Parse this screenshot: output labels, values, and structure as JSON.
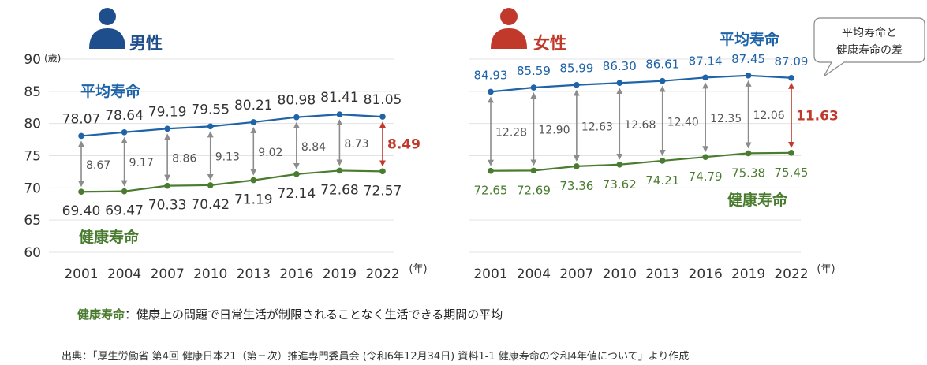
{
  "colors": {
    "life": "#1f63a8",
    "healthy": "#4a7c2f",
    "diff": "#8c8c8c",
    "diff_last": "#c0392b",
    "icon_male": "#1f4e8c",
    "icon_female": "#c0392b"
  },
  "icons": {
    "male": "male-person-icon",
    "female": "female-person-icon"
  },
  "chart_data": [
    {
      "type": "line",
      "panel_title": "男性",
      "ylabel_unit": "(歳)",
      "xlabel_unit": "(年)",
      "ylim": [
        60,
        90
      ],
      "yticks": [
        "60",
        "65",
        "70",
        "75",
        "80",
        "85",
        "90"
      ],
      "categories": [
        "2001",
        "2004",
        "2007",
        "2010",
        "2013",
        "2016",
        "2019",
        "2022"
      ],
      "series": [
        {
          "name": "平均寿命",
          "values": [
            78.07,
            78.64,
            79.19,
            79.55,
            80.21,
            80.98,
            81.41,
            81.05
          ],
          "labels": [
            "78.07",
            "78.64",
            "79.19",
            "79.55",
            "80.21",
            "80.98",
            "81.41",
            "81.05"
          ]
        },
        {
          "name": "健康寿命",
          "values": [
            69.4,
            69.47,
            70.33,
            70.42,
            71.19,
            72.14,
            72.68,
            72.57
          ],
          "labels": [
            "69.40",
            "69.47",
            "70.33",
            "70.42",
            "71.19",
            "72.14",
            "72.68",
            "72.57"
          ]
        }
      ],
      "differences": [
        "8.67",
        "9.17",
        "8.86",
        "9.13",
        "9.02",
        "8.84",
        "8.73",
        "8.49"
      ]
    },
    {
      "type": "line",
      "panel_title": "女性",
      "xlabel_unit": "(年)",
      "ylim": [
        60,
        90
      ],
      "categories": [
        "2001",
        "2004",
        "2007",
        "2010",
        "2013",
        "2016",
        "2019",
        "2022"
      ],
      "series": [
        {
          "name": "平均寿命",
          "values": [
            84.93,
            85.59,
            85.99,
            86.3,
            86.61,
            87.14,
            87.45,
            87.09
          ],
          "labels": [
            "84.93",
            "85.59",
            "85.99",
            "86.30",
            "86.61",
            "87.14",
            "87.45",
            "87.09"
          ]
        },
        {
          "name": "健康寿命",
          "values": [
            72.65,
            72.69,
            73.36,
            73.62,
            74.21,
            74.79,
            75.38,
            75.45
          ],
          "labels": [
            "72.65",
            "72.69",
            "73.36",
            "73.62",
            "74.21",
            "74.79",
            "75.38",
            "75.45"
          ]
        }
      ],
      "differences": [
        "12.28",
        "12.90",
        "12.63",
        "12.68",
        "12.40",
        "12.35",
        "12.06",
        "11.63"
      ],
      "callout": "平均寿命と\n健康寿命の差"
    }
  ],
  "footnote": {
    "term": "健康寿命",
    "text": "：健康上の問題で日常生活が制限されることなく生活できる期間の平均"
  },
  "source": "出典：「厚生労働省 第4回 健康日本21（第三次）推進専門委員会 (令和6年12月34日) 資料1-1 健康寿命の令和4年値について」より作成"
}
